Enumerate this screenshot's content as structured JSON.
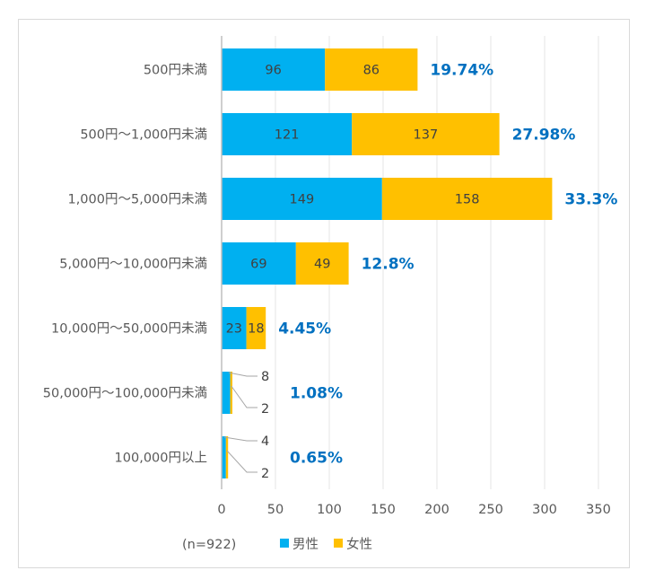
{
  "chart_data": {
    "type": "bar",
    "orientation": "horizontal",
    "stacked": true,
    "categories": [
      "500円未満",
      "500円～1,000円未満",
      "1,000円～5,000円未満",
      "5,000円～10,000円未満",
      "10,000円～50,000円未満",
      "50,000円～100,000円未満",
      "100,000円以上"
    ],
    "series": [
      {
        "name": "男性",
        "color": "#00b0f0",
        "values": [
          96,
          121,
          149,
          69,
          23,
          8,
          4
        ]
      },
      {
        "name": "女性",
        "color": "#ffc000",
        "values": [
          86,
          137,
          158,
          49,
          18,
          2,
          2
        ]
      }
    ],
    "value_labels": {
      "男性": [
        "96",
        "121",
        "149",
        "69",
        "23",
        "8",
        "4"
      ],
      "女性": [
        "86",
        "137",
        "158",
        "49",
        "18",
        "2",
        "2"
      ]
    },
    "total_percent_labels": [
      "19.74%",
      "27.98%",
      "33.3%",
      "12.8%",
      "4.45%",
      "1.08%",
      "0.65%"
    ],
    "xlim": [
      0,
      350
    ],
    "x_ticks": [
      "0",
      "50",
      "100",
      "150",
      "200",
      "250",
      "300",
      "350"
    ],
    "x_tick_values": [
      0,
      50,
      100,
      150,
      200,
      250,
      300,
      350
    ],
    "grid": true,
    "legend_position": "bottom",
    "note": "(n=922)",
    "title": "",
    "xlabel": "",
    "ylabel": "",
    "percent_color": "#0070c0"
  }
}
